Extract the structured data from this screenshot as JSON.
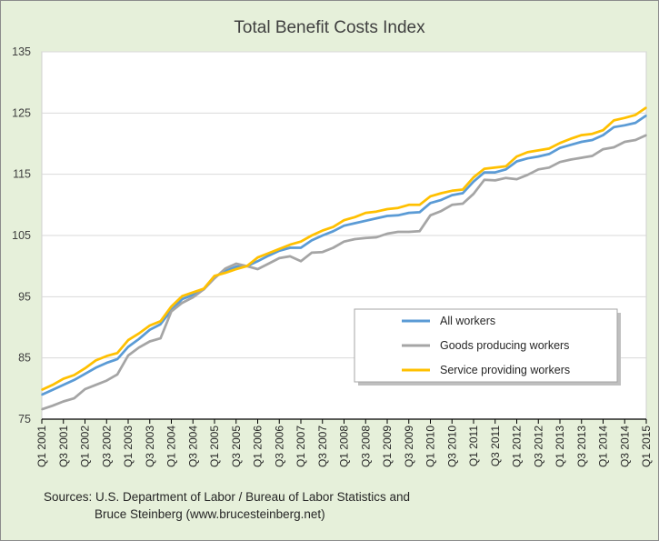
{
  "chart_data": {
    "type": "line",
    "title": "Total Benefit Costs Index",
    "xlabel": "",
    "ylabel": "",
    "ylim": [
      75,
      135
    ],
    "yticks": [
      75,
      85,
      95,
      105,
      115,
      125,
      135
    ],
    "grid": "horizontal",
    "legend_position": "lower-right",
    "x": [
      "Q1 2001",
      "Q2 2001",
      "Q3 2001",
      "Q4 2001",
      "Q1 2002",
      "Q2 2002",
      "Q3 2002",
      "Q4 2002",
      "Q1 2003",
      "Q2 2003",
      "Q3 2003",
      "Q4 2003",
      "Q1 2004",
      "Q2 2004",
      "Q3 2004",
      "Q4 2004",
      "Q1 2005",
      "Q2 2005",
      "Q3 2005",
      "Q4 2005",
      "Q1 2006",
      "Q2 2006",
      "Q3 2006",
      "Q4 2006",
      "Q1 2007",
      "Q2 2007",
      "Q3 2007",
      "Q4 2007",
      "Q1 2008",
      "Q2 2008",
      "Q3 2008",
      "Q4 2008",
      "Q1 2009",
      "Q2 2009",
      "Q3 2009",
      "Q4 2009",
      "Q1 2010",
      "Q2 2010",
      "Q3 2010",
      "Q4 2010",
      "Q1 2011",
      "Q2 2011",
      "Q3 2011",
      "Q4 2011",
      "Q1 2012",
      "Q2 2012",
      "Q3 2012",
      "Q4 2012",
      "Q1 2013",
      "Q2 2013",
      "Q3 2013",
      "Q4 2013",
      "Q1 2014",
      "Q2 2014",
      "Q3 2014",
      "Q4 2014",
      "Q1 2015"
    ],
    "x_tick_labels": [
      "Q1 2001",
      "Q3 2001",
      "Q1 2002",
      "Q3 2002",
      "Q1 2003",
      "Q3 2003",
      "Q1 2004",
      "Q3 2004",
      "Q1 2005",
      "Q3 2005",
      "Q1 2006",
      "Q3 2006",
      "Q1 2007",
      "Q3 2007",
      "Q1 2008",
      "Q3 2008",
      "Q1 2009",
      "Q3 2009",
      "Q1 2010",
      "Q3 2010",
      "Q1 2011",
      "Q3 2011",
      "Q1 2012",
      "Q3 2012",
      "Q1 2013",
      "Q3 2013",
      "Q1 2014",
      "Q3 2014",
      "Q1 2015"
    ],
    "series": [
      {
        "name": "All workers",
        "color": "#5b9bd5",
        "values": [
          79.0,
          79.8,
          80.6,
          81.4,
          82.4,
          83.4,
          84.2,
          84.8,
          86.8,
          88.1,
          89.6,
          90.5,
          92.8,
          94.6,
          95.3,
          96.2,
          98.2,
          99.2,
          99.9,
          100.0,
          100.8,
          101.7,
          102.5,
          103.0,
          103.0,
          104.2,
          105.0,
          105.7,
          106.6,
          107.0,
          107.4,
          107.8,
          108.2,
          108.3,
          108.7,
          108.8,
          110.3,
          110.8,
          111.6,
          111.9,
          113.8,
          115.3,
          115.3,
          115.8,
          117.1,
          117.6,
          117.9,
          118.3,
          119.3,
          119.8,
          120.3,
          120.6,
          121.4,
          122.7,
          123.0,
          123.4,
          124.6
        ]
      },
      {
        "name": "Goods producing workers",
        "color": "#a5a5a5",
        "values": [
          76.6,
          77.2,
          77.9,
          78.4,
          79.9,
          80.6,
          81.3,
          82.3,
          85.4,
          86.7,
          87.7,
          88.2,
          92.6,
          94.0,
          94.9,
          96.2,
          98.0,
          99.6,
          100.4,
          100.0,
          99.5,
          100.4,
          101.3,
          101.6,
          100.8,
          102.2,
          102.3,
          103.0,
          104.0,
          104.4,
          104.6,
          104.7,
          105.3,
          105.6,
          105.6,
          105.7,
          108.3,
          109.0,
          110.0,
          110.2,
          111.8,
          114.1,
          114.0,
          114.4,
          114.2,
          114.9,
          115.8,
          116.1,
          117.0,
          117.4,
          117.7,
          118.0,
          119.1,
          119.4,
          120.3,
          120.6,
          121.4
        ]
      },
      {
        "name": "Service providing workers",
        "color": "#ffc000",
        "values": [
          79.8,
          80.6,
          81.6,
          82.2,
          83.3,
          84.6,
          85.3,
          85.8,
          87.9,
          89.0,
          90.3,
          91.0,
          93.4,
          95.1,
          95.7,
          96.3,
          98.4,
          98.9,
          99.5,
          100.0,
          101.4,
          102.1,
          102.8,
          103.5,
          104.0,
          105.0,
          105.8,
          106.4,
          107.5,
          108.0,
          108.7,
          108.9,
          109.3,
          109.5,
          110.0,
          110.0,
          111.4,
          111.9,
          112.3,
          112.5,
          114.5,
          115.9,
          116.1,
          116.3,
          117.9,
          118.6,
          118.9,
          119.2,
          120.1,
          120.8,
          121.4,
          121.6,
          122.2,
          123.8,
          124.2,
          124.7,
          125.9
        ]
      }
    ]
  },
  "sources": {
    "line1": "Sources: U.S. Department of Labor / Bureau of Labor Statistics and",
    "line2": "Bruce Steinberg (www.brucesteinberg.net)"
  }
}
